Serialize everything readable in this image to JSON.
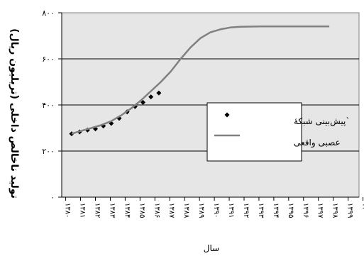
{
  "chart_data": {
    "type": "line",
    "xlabel": "سال",
    "ylabel": "تولید ناخالص داخلی (تریلیون ریال)",
    "x_ticks": [
      "۱۳۸۰",
      "۱۳۸۱",
      "۱۳۸۲",
      "۱۳۸۳",
      "۱۳۸۴",
      "۱۳۸۵",
      "۱۳۸۶",
      "۱۳۸۷",
      "۱۳۸۸",
      "۱۳۸۹",
      "۱۳۹۰",
      "۱۳۹۱",
      "۱۳۹۲",
      "۱۳۹۳",
      "۱۳۹۴",
      "۱۳۹۵",
      "۱۳۹۶",
      "۱۳۹۷",
      "۱۳۹۸",
      "۱۳۹۹",
      "۱۴۰۰"
    ],
    "y_ticks": [
      "۰",
      "۲۰۰",
      "۴۰۰",
      "۶۰۰",
      "۸۰۰"
    ],
    "ylim": [
      0,
      800
    ],
    "legend": [
      "`پیش‌بینی شبکهٔ",
      "عصبی واقعی"
    ],
    "legend_position": "right",
    "grid": "horizontal",
    "series": [
      {
        "kind": "points",
        "marker": "diamond",
        "x": [
          0,
          0.8,
          1.6,
          2.4,
          3.2,
          4.0,
          4.8,
          5.6,
          6.4,
          7.2,
          8.0,
          8.8
        ],
        "values": [
          275,
          283,
          291,
          296,
          309,
          320,
          342,
          370,
          393,
          411,
          435,
          452
        ]
      },
      {
        "kind": "line",
        "x": [
          0,
          1,
          2,
          3,
          4,
          5,
          6,
          7,
          8,
          9,
          10,
          11,
          12,
          13,
          14,
          15,
          16,
          17,
          18,
          19,
          20,
          21,
          22,
          23,
          24,
          25,
          26
        ],
        "values": [
          275,
          288,
          300,
          313,
          330,
          355,
          385,
          420,
          460,
          500,
          545,
          600,
          650,
          690,
          715,
          728,
          736,
          739,
          740,
          741,
          741,
          741,
          741,
          741,
          741,
          741,
          741
        ]
      }
    ],
    "colors": {
      "plot_bg": "#e6e6e6",
      "line": "#808080",
      "marker": "#000000"
    }
  }
}
